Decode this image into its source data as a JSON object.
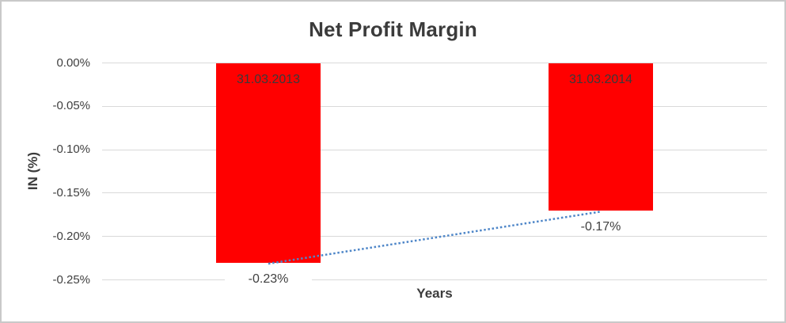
{
  "frame": {
    "background": "#FFFFFF",
    "border_color": "#C9C9C9"
  },
  "chart_data": {
    "type": "bar",
    "title": "Net Profit Margin",
    "xlabel": "Years",
    "ylabel": "IN (%)",
    "categories": [
      "31.03.2013",
      "31.03.2014"
    ],
    "values": [
      -0.23,
      -0.17
    ],
    "value_labels": [
      "-0.23%",
      "-0.17%"
    ],
    "y_ticks": [
      {
        "label": "0.00%",
        "value": 0
      },
      {
        "label": "-0.05%",
        "value": -0.05
      },
      {
        "label": "-0.10%",
        "value": -0.1
      },
      {
        "label": "-0.15%",
        "value": -0.15
      },
      {
        "label": "-0.20%",
        "value": -0.2
      },
      {
        "label": "-0.25%",
        "value": -0.25
      }
    ],
    "ylim": [
      0,
      -0.25
    ],
    "grid": true,
    "legend": "none",
    "bar_color": "#FF0000",
    "gridline_color": "#D9D9D9",
    "text_color": "#3F3F3F",
    "trendline": {
      "type": "linear",
      "style": "dotted",
      "color": "#4E86C8",
      "connects_values": [
        -0.23,
        -0.17
      ]
    }
  }
}
